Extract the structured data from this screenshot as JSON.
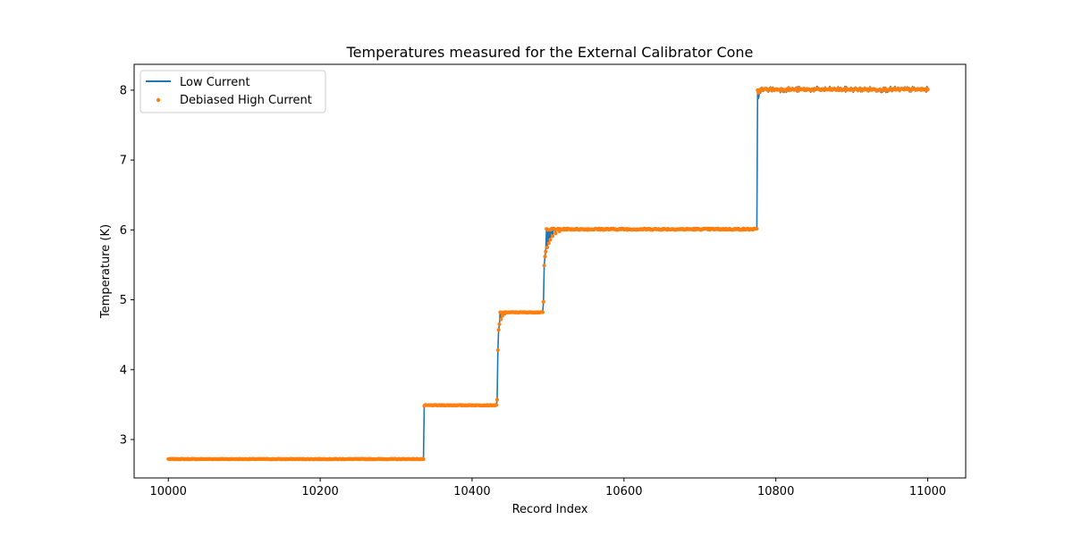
{
  "chart_data": {
    "type": "line",
    "title": "Temperatures measured for the External Calibrator Cone",
    "xlabel": "Record Index",
    "ylabel": "Temperature (K)",
    "xlim": [
      9955,
      11050
    ],
    "ylim": [
      2.45,
      8.37
    ],
    "xticks": [
      10000,
      10200,
      10400,
      10600,
      10800,
      11000
    ],
    "yticks": [
      3,
      4,
      5,
      6,
      7,
      8
    ],
    "grid": false,
    "legend_position": "top-left",
    "x_start": 10000,
    "x_end": 11000,
    "segments": [
      {
        "start": 10000,
        "end": 10337,
        "level": 2.72
      },
      {
        "start": 10337,
        "end": 10433,
        "level": 3.49
      },
      {
        "start": 10433,
        "end": 10494,
        "level": 4.82
      },
      {
        "start": 10494,
        "end": 10776,
        "level": 6.01
      },
      {
        "start": 10776,
        "end": 11000,
        "level": 8.01
      }
    ],
    "transition_points": [
      {
        "x": 10337,
        "y": 3.48
      },
      {
        "x": 10433,
        "y": 3.57
      },
      {
        "x": 10434,
        "y": 4.28
      },
      {
        "x": 10435,
        "y": 4.57
      },
      {
        "x": 10436,
        "y": 4.65
      },
      {
        "x": 10438,
        "y": 4.72
      },
      {
        "x": 10440,
        "y": 4.77
      },
      {
        "x": 10443,
        "y": 4.8
      },
      {
        "x": 10494,
        "y": 4.97
      },
      {
        "x": 10495,
        "y": 5.49
      },
      {
        "x": 10496,
        "y": 5.62
      },
      {
        "x": 10497,
        "y": 5.69
      },
      {
        "x": 10499,
        "y": 5.75
      },
      {
        "x": 10501,
        "y": 5.81
      },
      {
        "x": 10503,
        "y": 5.86
      },
      {
        "x": 10506,
        "y": 5.91
      },
      {
        "x": 10510,
        "y": 5.95
      },
      {
        "x": 10515,
        "y": 5.98
      },
      {
        "x": 10777,
        "y": 7.88
      },
      {
        "x": 10778,
        "y": 7.93
      },
      {
        "x": 10780,
        "y": 7.96
      },
      {
        "x": 10783,
        "y": 7.98
      }
    ],
    "series": [
      {
        "name": "Low Current",
        "color": "#1f77b4",
        "style": "line"
      },
      {
        "name": "Debiased High Current",
        "color": "#ff7f0e",
        "style": "scatter"
      }
    ]
  }
}
